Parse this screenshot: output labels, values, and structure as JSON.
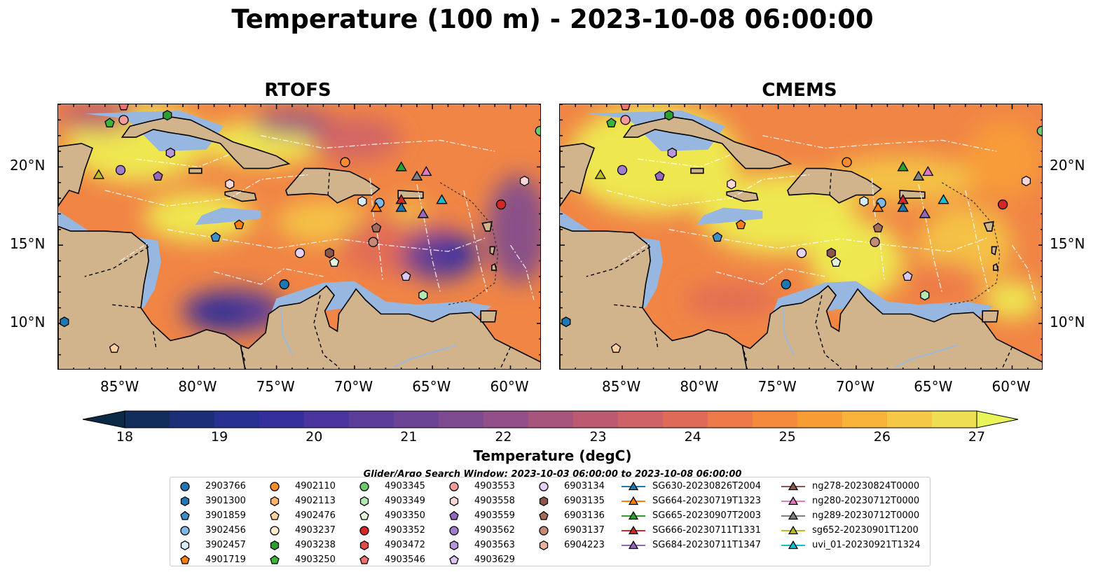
{
  "title": "Temperature (100 m) - 2023-10-08 06:00:00",
  "panels": [
    {
      "title": "RTOFS",
      "variant": "rtofs"
    },
    {
      "title": "CMEMS",
      "variant": "cmems"
    }
  ],
  "axes": {
    "lon_ticks": [
      "85°W",
      "80°W",
      "75°W",
      "70°W",
      "65°W",
      "60°W"
    ],
    "lat_ticks": [
      "20°N",
      "15°N",
      "10°N"
    ],
    "lon_range": [
      -89,
      -58
    ],
    "lat_range": [
      7,
      24
    ]
  },
  "colorbar": {
    "label": "Temperature (degC)",
    "ticks": [
      "18",
      "19",
      "20",
      "21",
      "22",
      "23",
      "24",
      "25",
      "26",
      "27"
    ],
    "colors": [
      "#0c2a46",
      "#122d5b",
      "#1c2e78",
      "#283092",
      "#352f9e",
      "#4a349f",
      "#5b3d9a",
      "#6b4495",
      "#7e4a90",
      "#924f88",
      "#a8557e",
      "#bc5a72",
      "#cf6266",
      "#e06a58",
      "#ed7949",
      "#f5893c",
      "#f89d36",
      "#f8b23a",
      "#f5c846",
      "#eedf52",
      "#e8f458"
    ]
  },
  "search_window": "Glider/Argo Search Window: 2023-10-03 06:00:00 to 2023-10-08 06:00:00",
  "legend": [
    [
      {
        "label": "2903766",
        "marker": "circle",
        "color": "#1f77b4"
      },
      {
        "label": "3901300",
        "marker": "hexagon",
        "color": "#1f77b4"
      },
      {
        "label": "3901859",
        "marker": "pentagon",
        "color": "#3d8ec9"
      },
      {
        "label": "3902456",
        "marker": "circle",
        "color": "#7fb8e8"
      },
      {
        "label": "3902457",
        "marker": "hexagon",
        "color": "#d6ecfb"
      },
      {
        "label": "4901719",
        "marker": "pentagon",
        "color": "#ff7f0e"
      }
    ],
    [
      {
        "label": "4902110",
        "marker": "circle",
        "color": "#ff8c2a"
      },
      {
        "label": "4902113",
        "marker": "hexagon",
        "color": "#ffb36b"
      },
      {
        "label": "4902476",
        "marker": "pentagon",
        "color": "#ffcfa0"
      },
      {
        "label": "4903237",
        "marker": "circle",
        "color": "#ffe9cf"
      },
      {
        "label": "4903238",
        "marker": "hexagon",
        "color": "#2ca02c"
      },
      {
        "label": "4903250",
        "marker": "pentagon",
        "color": "#3cb43c"
      }
    ],
    [
      {
        "label": "4903345",
        "marker": "circle",
        "color": "#6cc96c"
      },
      {
        "label": "4903349",
        "marker": "hexagon",
        "color": "#b5e8b0"
      },
      {
        "label": "4903350",
        "marker": "pentagon",
        "color": "#e2f7dc"
      },
      {
        "label": "4903352",
        "marker": "circle",
        "color": "#d62728"
      },
      {
        "label": "4903472",
        "marker": "hexagon",
        "color": "#e34a4a"
      },
      {
        "label": "4903546",
        "marker": "pentagon",
        "color": "#f07070"
      }
    ],
    [
      {
        "label": "4903553",
        "marker": "circle",
        "color": "#f59a9a"
      },
      {
        "label": "4903558",
        "marker": "hexagon",
        "color": "#fcd6d6"
      },
      {
        "label": "4903559",
        "marker": "pentagon",
        "color": "#9467bd"
      },
      {
        "label": "4903562",
        "marker": "circle",
        "color": "#a07ccc"
      },
      {
        "label": "4903563",
        "marker": "hexagon",
        "color": "#b796de"
      },
      {
        "label": "4903629",
        "marker": "pentagon",
        "color": "#d9c6f2"
      }
    ],
    [
      {
        "label": "6903134",
        "marker": "circle",
        "color": "#e6d2f7"
      },
      {
        "label": "6903135",
        "marker": "hexagon",
        "color": "#8c564b"
      },
      {
        "label": "6903136",
        "marker": "pentagon",
        "color": "#a66a5c"
      },
      {
        "label": "6903137",
        "marker": "circle",
        "color": "#c48a78"
      },
      {
        "label": "6904223",
        "marker": "hexagon",
        "color": "#e8b29d"
      }
    ],
    [
      {
        "label": "SG630-20230826T2004",
        "marker": "triangle",
        "color": "#1f77b4"
      },
      {
        "label": "SG664-20230719T1323",
        "marker": "triangle",
        "color": "#ff7f0e"
      },
      {
        "label": "SG665-20230907T2003",
        "marker": "triangle",
        "color": "#2ca02c"
      },
      {
        "label": "SG666-20230711T1331",
        "marker": "triangle",
        "color": "#d62728"
      },
      {
        "label": "SG684-20230711T1347",
        "marker": "triangle",
        "color": "#9467bd"
      }
    ],
    [
      {
        "label": "ng278-20230824T0000",
        "marker": "triangle",
        "color": "#8c564b"
      },
      {
        "label": "ng280-20230712T0000",
        "marker": "triangle",
        "color": "#e377c2"
      },
      {
        "label": "ng289-20230712T0000",
        "marker": "triangle",
        "color": "#7f7f7f"
      },
      {
        "label": "sg652-20230901T1200",
        "marker": "triangle",
        "color": "#bcbd22"
      },
      {
        "label": "uvi_01-20230921T1324",
        "marker": "triangle",
        "color": "#17becf"
      }
    ]
  ],
  "markers": [
    {
      "id": "4903238",
      "lon": -82.0,
      "lat": 23.3,
      "marker": "hexagon",
      "color": "#2ca02c"
    },
    {
      "id": "4903250",
      "lon": -85.7,
      "lat": 22.8,
      "marker": "pentagon",
      "color": "#3cb43c"
    },
    {
      "id": "4903553",
      "lon": -84.8,
      "lat": 23.0,
      "marker": "circle",
      "color": "#f59a9a"
    },
    {
      "id": "4903546",
      "lon": -84.8,
      "lat": 23.9,
      "marker": "pentagon",
      "color": "#f07070"
    },
    {
      "id": "4903563",
      "lon": -81.8,
      "lat": 20.9,
      "marker": "hexagon",
      "color": "#b796de"
    },
    {
      "id": "sg652-20230901T1200",
      "lon": -86.4,
      "lat": 19.5,
      "marker": "triangle",
      "color": "#bcbd22"
    },
    {
      "id": "4903562",
      "lon": -85.0,
      "lat": 19.8,
      "marker": "circle",
      "color": "#a07ccc"
    },
    {
      "id": "4903559",
      "lon": -82.6,
      "lat": 19.4,
      "marker": "pentagon",
      "color": "#9467bd"
    },
    {
      "id": "4903558",
      "lon": -78.0,
      "lat": 18.9,
      "marker": "hexagon",
      "color": "#fcd6d6"
    },
    {
      "id": "4902110",
      "lon": -70.6,
      "lat": 20.3,
      "marker": "circle",
      "color": "#ff8c2a"
    },
    {
      "id": "4901719",
      "lon": -77.4,
      "lat": 16.3,
      "marker": "pentagon",
      "color": "#ff7f0e"
    },
    {
      "id": "3901859",
      "lon": -78.9,
      "lat": 15.5,
      "marker": "pentagon",
      "color": "#3d8ec9"
    },
    {
      "id": "6903134",
      "lon": -73.5,
      "lat": 14.5,
      "marker": "circle",
      "color": "#e6d2f7"
    },
    {
      "id": "6903135",
      "lon": -71.6,
      "lat": 14.5,
      "marker": "hexagon",
      "color": "#8c564b"
    },
    {
      "id": "4903350",
      "lon": -71.3,
      "lat": 13.9,
      "marker": "pentagon",
      "color": "#e2f7dc"
    },
    {
      "id": "2903766",
      "lon": -74.5,
      "lat": 12.5,
      "marker": "circle",
      "color": "#1f77b4"
    },
    {
      "id": "3902457",
      "lon": -69.5,
      "lat": 17.8,
      "marker": "hexagon",
      "color": "#d6ecfb"
    },
    {
      "id": "3902456",
      "lon": -68.4,
      "lat": 17.7,
      "marker": "circle",
      "color": "#7fb8e8"
    },
    {
      "id": "SG664-20230719T1323",
      "lon": -68.6,
      "lat": 17.4,
      "marker": "triangle",
      "color": "#ff7f0e"
    },
    {
      "id": "6903136",
      "lon": -68.6,
      "lat": 16.1,
      "marker": "pentagon",
      "color": "#a66a5c"
    },
    {
      "id": "6903137",
      "lon": -68.8,
      "lat": 15.2,
      "marker": "circle",
      "color": "#c48a78"
    },
    {
      "id": "SG665-20230907T2003",
      "lon": -67.0,
      "lat": 20.0,
      "marker": "triangle",
      "color": "#2ca02c"
    },
    {
      "id": "ng289-20230712T0000",
      "lon": -66.0,
      "lat": 19.4,
      "marker": "triangle",
      "color": "#7f7f7f"
    },
    {
      "id": "ng280-20230712T0000",
      "lon": -65.4,
      "lat": 19.7,
      "marker": "triangle",
      "color": "#e377c2"
    },
    {
      "id": "SG666-20230711T1331",
      "lon": -67.0,
      "lat": 17.9,
      "marker": "triangle",
      "color": "#d62728"
    },
    {
      "id": "SG630-20230826T2004",
      "lon": -67.0,
      "lat": 17.4,
      "marker": "triangle",
      "color": "#1f77b4"
    },
    {
      "id": "SG684-20230711T1347",
      "lon": -65.6,
      "lat": 17.0,
      "marker": "triangle",
      "color": "#9467bd"
    },
    {
      "id": "uvi_01-20230921T1324",
      "lon": -64.4,
      "lat": 17.9,
      "marker": "triangle",
      "color": "#17becf"
    },
    {
      "id": "4903352",
      "lon": -60.6,
      "lat": 17.6,
      "marker": "circle",
      "color": "#d62728"
    },
    {
      "id": "4903558-b",
      "lon": -59.1,
      "lat": 19.1,
      "marker": "hexagon",
      "color": "#fcd6d6"
    },
    {
      "id": "4903629",
      "lon": -66.7,
      "lat": 13.0,
      "marker": "pentagon",
      "color": "#d9c6f2"
    },
    {
      "id": "4903349",
      "lon": -65.6,
      "lat": 11.8,
      "marker": "hexagon",
      "color": "#b5e8b0"
    },
    {
      "id": "3901300",
      "lon": -88.6,
      "lat": 10.1,
      "marker": "hexagon",
      "color": "#1f77b4"
    },
    {
      "id": "4902476",
      "lon": -85.4,
      "lat": 8.4,
      "marker": "pentagon",
      "color": "#ffcfa0"
    },
    {
      "id": "4903345",
      "lon": -58.1,
      "lat": 22.3,
      "marker": "circle",
      "color": "#6cc96c"
    }
  ]
}
